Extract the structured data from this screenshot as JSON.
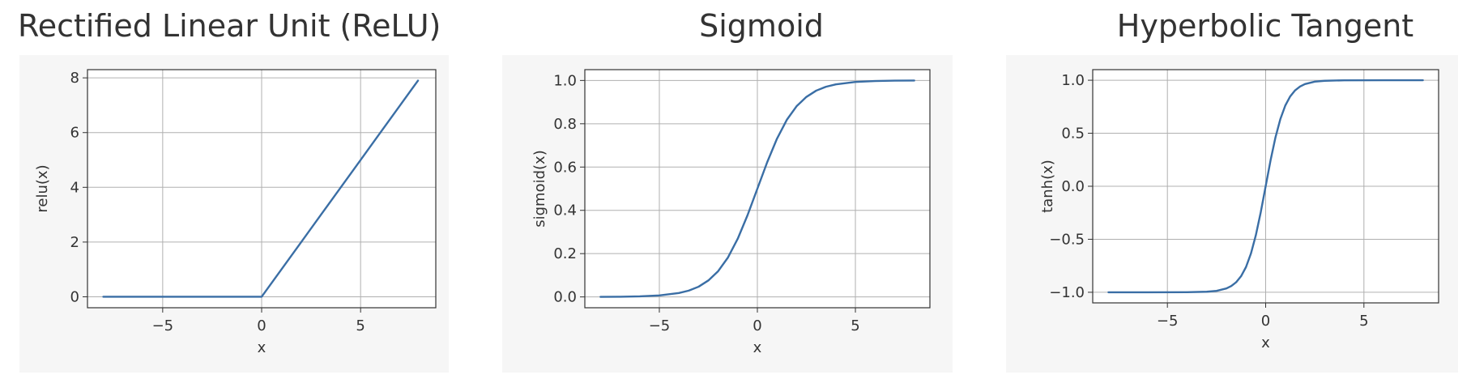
{
  "chart_data": [
    {
      "type": "line",
      "title": "Rectified Linear Unit (ReLU)",
      "xlabel": "x",
      "ylabel": "relu(x)",
      "xlim": [
        -8.8,
        8.8
      ],
      "ylim": [
        -0.4,
        8.3
      ],
      "xticks": [
        {
          "v": -5,
          "label": "−5"
        },
        {
          "v": 0,
          "label": "0"
        },
        {
          "v": 5,
          "label": "5"
        }
      ],
      "yticks": [
        {
          "v": 0,
          "label": "0"
        },
        {
          "v": 2,
          "label": "2"
        },
        {
          "v": 4,
          "label": "4"
        },
        {
          "v": 6,
          "label": "6"
        },
        {
          "v": 8,
          "label": "8"
        }
      ],
      "grid": true,
      "color": "#3a6ea5",
      "series": [
        {
          "x": [
            -8,
            -7,
            -6,
            -5,
            -4,
            -3,
            -2,
            -1,
            0,
            1,
            2,
            3,
            4,
            5,
            6,
            7,
            7.9
          ],
          "y": [
            0,
            0,
            0,
            0,
            0,
            0,
            0,
            0,
            0,
            1,
            2,
            3,
            4,
            5,
            6,
            7,
            7.9
          ]
        }
      ]
    },
    {
      "type": "line",
      "title": "Sigmoid",
      "xlabel": "x",
      "ylabel": "sigmoid(x)",
      "xlim": [
        -8.8,
        8.8
      ],
      "ylim": [
        -0.05,
        1.05
      ],
      "xticks": [
        {
          "v": -5,
          "label": "−5"
        },
        {
          "v": 0,
          "label": "0"
        },
        {
          "v": 5,
          "label": "5"
        }
      ],
      "yticks": [
        {
          "v": 0.0,
          "label": "0.0"
        },
        {
          "v": 0.2,
          "label": "0.2"
        },
        {
          "v": 0.4,
          "label": "0.4"
        },
        {
          "v": 0.6,
          "label": "0.6"
        },
        {
          "v": 0.8,
          "label": "0.8"
        },
        {
          "v": 1.0,
          "label": "1.0"
        }
      ],
      "grid": true,
      "color": "#3a6ea5",
      "series": [
        {
          "x": [
            -8,
            -7,
            -6,
            -5,
            -4,
            -3.5,
            -3,
            -2.5,
            -2,
            -1.5,
            -1,
            -0.5,
            0,
            0.5,
            1,
            1.5,
            2,
            2.5,
            3,
            3.5,
            4,
            5,
            6,
            7,
            8
          ],
          "y": [
            0.0003,
            0.0009,
            0.0025,
            0.0067,
            0.018,
            0.029,
            0.047,
            0.076,
            0.119,
            0.182,
            0.269,
            0.378,
            0.5,
            0.622,
            0.731,
            0.818,
            0.881,
            0.924,
            0.953,
            0.971,
            0.982,
            0.993,
            0.9975,
            0.9991,
            0.9997
          ]
        }
      ]
    },
    {
      "type": "line",
      "title": "Hyperbolic Tangent",
      "xlabel": "x",
      "ylabel": "tanh(x)",
      "xlim": [
        -8.8,
        8.8
      ],
      "ylim": [
        -1.1,
        1.1
      ],
      "xticks": [
        {
          "v": -5,
          "label": "−5"
        },
        {
          "v": 0,
          "label": "0"
        },
        {
          "v": 5,
          "label": "5"
        }
      ],
      "yticks": [
        {
          "v": -1.0,
          "label": "−1.0"
        },
        {
          "v": -0.5,
          "label": "−0.5"
        },
        {
          "v": 0.0,
          "label": "0.0"
        },
        {
          "v": 0.5,
          "label": "0.5"
        },
        {
          "v": 1.0,
          "label": "1.0"
        }
      ],
      "grid": true,
      "color": "#3a6ea5",
      "series": [
        {
          "x": [
            -8,
            -6,
            -4,
            -3,
            -2.5,
            -2,
            -1.75,
            -1.5,
            -1.25,
            -1,
            -0.75,
            -0.5,
            -0.25,
            0,
            0.25,
            0.5,
            0.75,
            1,
            1.25,
            1.5,
            1.75,
            2,
            2.5,
            3,
            4,
            6,
            8
          ],
          "y": [
            -1.0,
            -1.0,
            -0.9993,
            -0.995,
            -0.987,
            -0.964,
            -0.941,
            -0.905,
            -0.848,
            -0.762,
            -0.635,
            -0.462,
            -0.245,
            0,
            0.245,
            0.462,
            0.635,
            0.762,
            0.848,
            0.905,
            0.941,
            0.964,
            0.987,
            0.995,
            0.9993,
            1.0,
            1.0
          ]
        }
      ]
    }
  ]
}
